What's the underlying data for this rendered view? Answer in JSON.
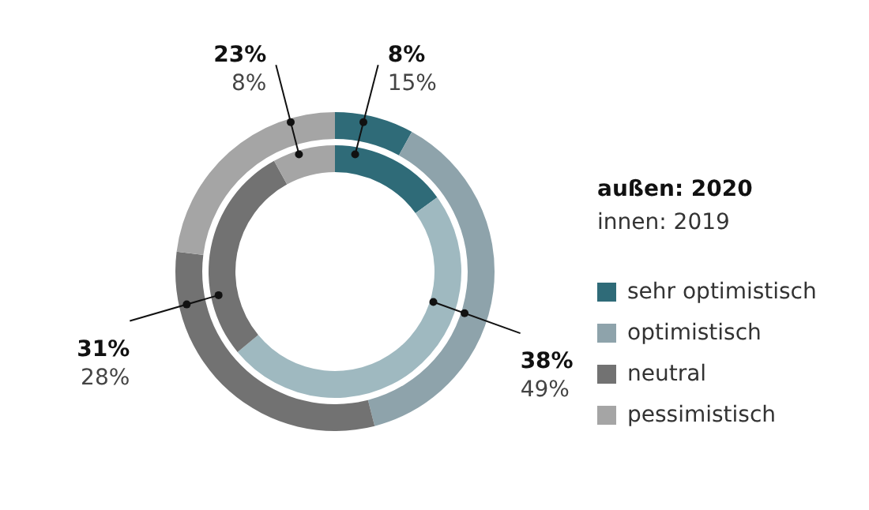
{
  "chart_data": {
    "type": "donut",
    "categories": [
      "sehr optimistisch",
      "optimistisch",
      "neutral",
      "pessimistisch"
    ],
    "series": [
      {
        "name": "außen: 2020",
        "values": [
          8,
          38,
          31,
          23
        ],
        "value_labels": [
          "8%",
          "38%",
          "31%",
          "23%"
        ],
        "colors": [
          "#2f6b78",
          "#8ea3ab",
          "#727272",
          "#a5a5a5"
        ]
      },
      {
        "name": "innen: 2019",
        "values": [
          15,
          49,
          28,
          8
        ],
        "value_labels": [
          "15%",
          "49%",
          "28%",
          "8%"
        ],
        "colors": [
          "#2f6b78",
          "#9fb9c0",
          "#727272",
          "#a5a5a5"
        ]
      }
    ],
    "legend": "right"
  }
}
